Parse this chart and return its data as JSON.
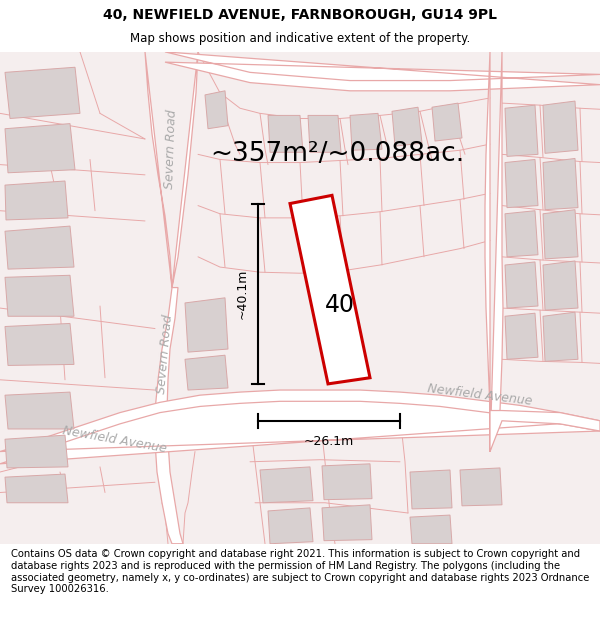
{
  "title": "40, NEWFIELD AVENUE, FARNBOROUGH, GU14 9PL",
  "subtitle": "Map shows position and indicative extent of the property.",
  "area_text": "~357m²/~0.088ac.",
  "label_40": "40",
  "dim_height": "~40.1m",
  "dim_width": "~26.1m",
  "footer": "Contains OS data © Crown copyright and database right 2021. This information is subject to Crown copyright and database rights 2023 and is reproduced with the permission of HM Land Registry. The polygons (including the associated geometry, namely x, y co-ordinates) are subject to Crown copyright and database rights 2023 Ordnance Survey 100026316.",
  "map_bg": "#f5eeee",
  "road_color": "#e8a8a8",
  "road_fill": "#ffffff",
  "building_fill": "#d8d0d0",
  "building_edge": "#d8a8a8",
  "plot_color": "#cc0000",
  "text_color": "#000000",
  "road_label_color": "#aaaaaa",
  "title_fontsize": 10,
  "subtitle_fontsize": 8.5,
  "area_fontsize": 19,
  "label_fontsize": 17,
  "dim_fontsize": 9,
  "footer_fontsize": 7.2,
  "road_label_fontsize": 9
}
